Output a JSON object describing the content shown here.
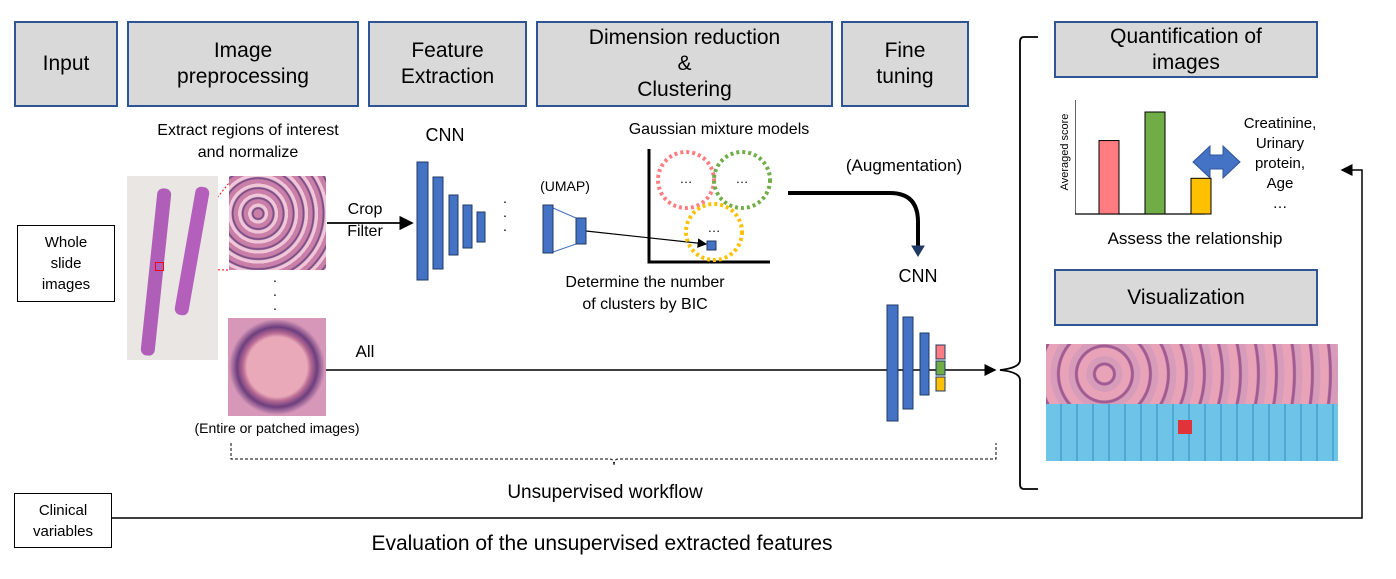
{
  "headers": {
    "input": "Input",
    "preprocessing": "Image\npreprocessing",
    "feature_extraction": "Feature\nExtraction",
    "dim_reduction": "Dimension reduction\n&\nClustering",
    "fine_tuning": "Fine\ntuning",
    "quantification": "Quantification of\nimages",
    "visualization": "Visualization"
  },
  "inputs": {
    "wsi": "Whole\nslide\nimages",
    "clinical": "Clinical\nvariables"
  },
  "labels": {
    "extract_roi": "Extract regions of interest\nand normalize",
    "cnn_top": "CNN",
    "crop_filter": "Crop\nFilter",
    "gmm": "Gaussian mixture models",
    "umap": "(UMAP)",
    "bic": "Determine the number\nof clusters by BIC",
    "augmentation": "(Augmentation)",
    "cnn_fine": "CNN",
    "all": "All",
    "entire_patched": "(Entire or patched images)",
    "unsupervised_workflow": "Unsupervised workflow",
    "evaluation": "Evaluation of the unsupervised extracted features",
    "assess": "Assess the relationship",
    "averaged_score": "Averaged score",
    "clinical_list": "Creatinine,\nUrinary\nprotein,\nAge\n…",
    "ellipsis": "…",
    "dots_vertical": "·\n·\n·"
  },
  "colors": {
    "header_fill": "#d9d9d9",
    "header_border": "#2f5597",
    "cnn_blue": "#4472c4",
    "cluster_red": "#ff7c80",
    "cluster_green": "#70ad47",
    "cluster_yellow": "#ffc000",
    "slide_tissue": "#b05fb8",
    "roi_red": "#ff0000"
  },
  "chart_data": {
    "type": "bar",
    "categories": [
      "",
      "",
      ""
    ],
    "values": [
      0.72,
      1.0,
      0.35
    ],
    "colors": [
      "#ff7c80",
      "#70ad47",
      "#ffc000"
    ],
    "ylabel": "Averaged score"
  }
}
